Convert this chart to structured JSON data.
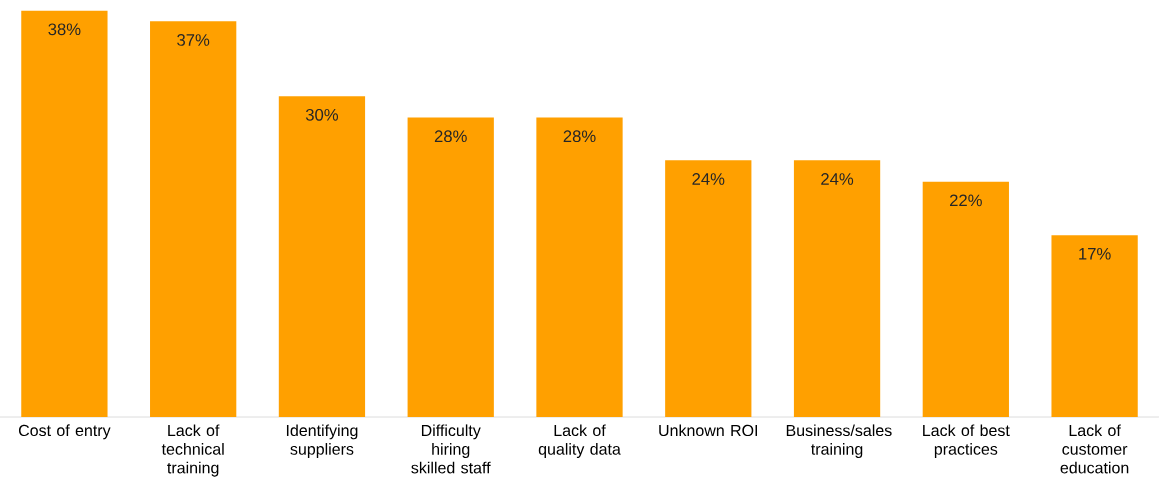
{
  "chart_data": {
    "type": "bar",
    "categories": [
      "Cost of entry",
      "Lack of technical training",
      "Identifying suppliers",
      "Difficulty hiring skilled staff",
      "Lack of quality data",
      "Unknown ROI",
      "Business/sales training",
      "Lack of best practices",
      "Lack of customer education"
    ],
    "values": [
      38,
      37,
      30,
      28,
      28,
      24,
      24,
      22,
      17
    ],
    "value_labels": [
      "38%",
      "37%",
      "30%",
      "28%",
      "28%",
      "24%",
      "24%",
      "22%",
      "17%"
    ],
    "color": "#ffa000"
  }
}
